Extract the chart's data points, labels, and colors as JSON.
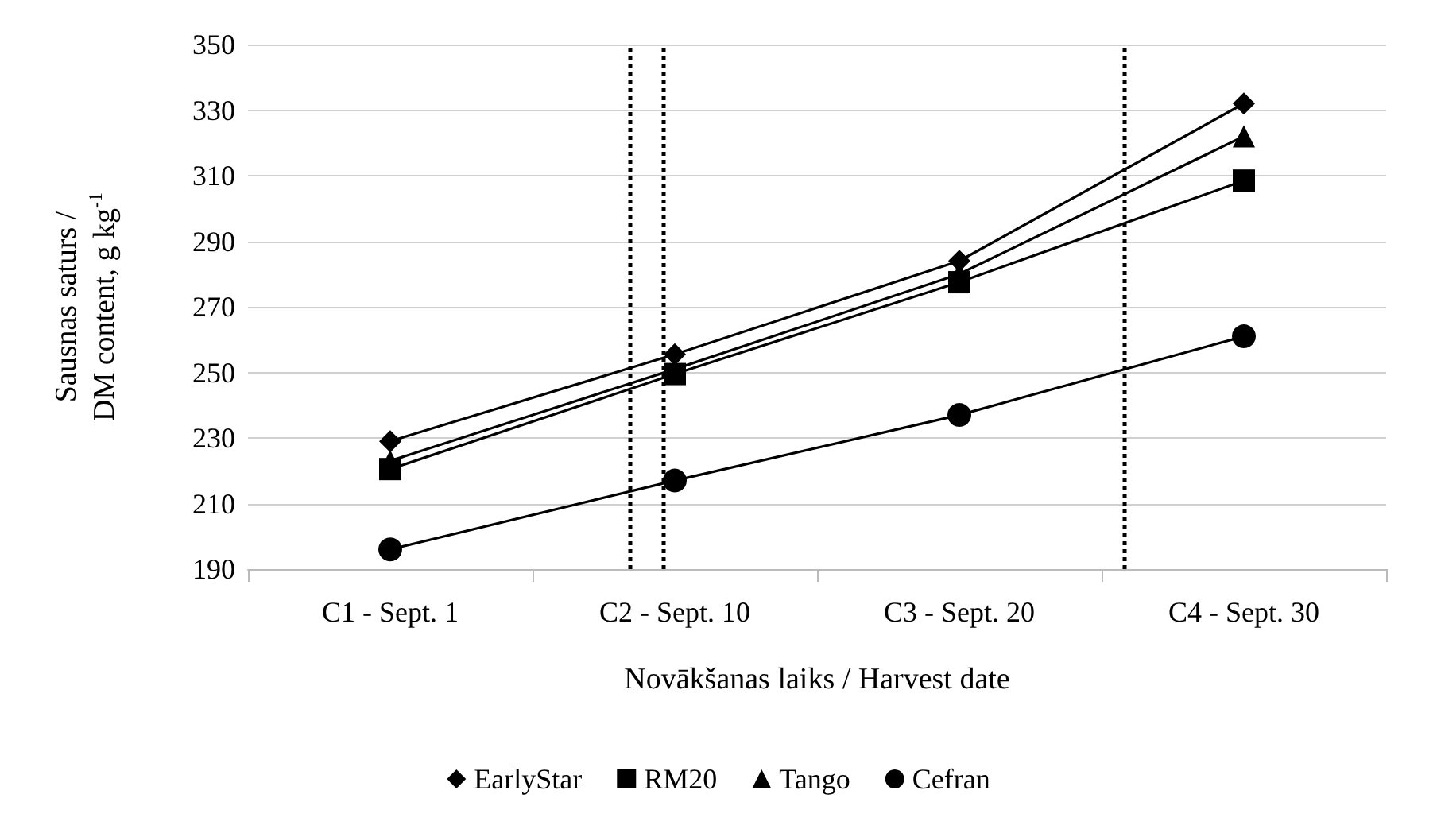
{
  "chart_data": {
    "type": "line",
    "xlabel": "Novākšanas laiks / Harvest date",
    "ylabel": "Sausnas saturs /\nDM content, g kg$^{-1}$",
    "categories": [
      "C1 - Sept. 1",
      "C2 - Sept. 10",
      "C3 - Sept. 20",
      "C4 - Sept. 30"
    ],
    "series": [
      {
        "name": "EarlyStar",
        "color": "#000000",
        "marker": "diamond",
        "values": [
          229,
          255.5,
          284,
          332
        ]
      },
      {
        "name": "RM20",
        "color": "#000000",
        "marker": "square",
        "values": [
          220.5,
          249.5,
          277.5,
          308.5
        ]
      },
      {
        "name": "Tango",
        "color": "#000000",
        "marker": "triangle",
        "values": [
          223,
          251,
          280,
          322
        ]
      },
      {
        "name": "Cefran",
        "color": "#000000",
        "marker": "circle",
        "values": [
          196,
          217,
          237,
          261
        ]
      }
    ],
    "ylim": [
      190,
      350
    ],
    "yticks": [
      190,
      210,
      230,
      250,
      270,
      290,
      310,
      330,
      350
    ],
    "grid": "y",
    "legend": "bottom",
    "line_style": "solid"
  }
}
